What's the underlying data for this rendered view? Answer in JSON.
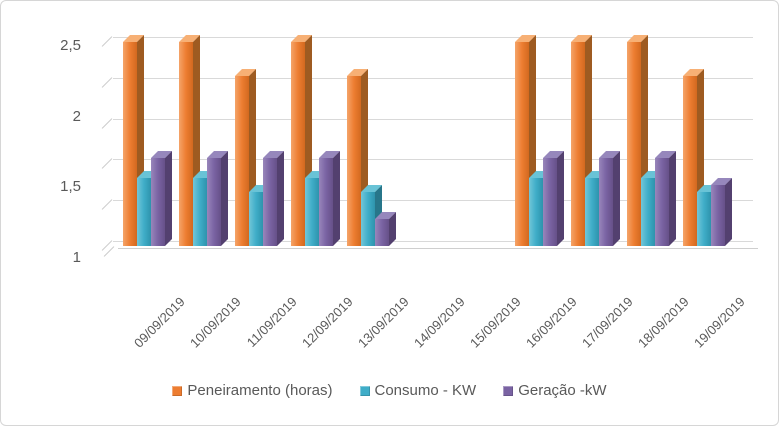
{
  "chart_data": {
    "type": "bar",
    "style": "3d-clustered-column",
    "title": "",
    "xlabel": "",
    "ylabel": "",
    "categories": [
      "09/09/2019",
      "10/09/2019",
      "11/09/2019",
      "12/09/2019",
      "13/09/2019",
      "14/09/2019",
      "15/09/2019",
      "16/09/2019",
      "17/09/2019",
      "18/09/2019",
      "19/09/2019"
    ],
    "series": [
      {
        "name": "Peneiramento (horas)",
        "values": [
          2.5,
          2.5,
          2.25,
          2.5,
          2.25,
          0,
          0,
          2.5,
          2.5,
          2.5,
          2.25
        ],
        "colors": {
          "main": "#ED7D31",
          "light": "#F5A469",
          "dark": "#D2691F",
          "topc": "#F7B075",
          "side": "#9E5B21"
        }
      },
      {
        "name": "Consumo - KW",
        "values": [
          1.5,
          1.5,
          1.4,
          1.5,
          1.4,
          0,
          0,
          1.5,
          1.5,
          1.5,
          1.4
        ],
        "colors": {
          "main": "#3FADC8",
          "light": "#72C6D8",
          "dark": "#2E93AC",
          "topc": "#69C3D6",
          "side": "#27768A"
        }
      },
      {
        "name": "Geração -kW",
        "values": [
          1.65,
          1.65,
          1.65,
          1.65,
          1.2,
          0,
          0,
          1.65,
          1.65,
          1.65,
          1.45
        ],
        "colors": {
          "main": "#7A63A3",
          "light": "#9886BB",
          "dark": "#665088",
          "topc": "#9687BC",
          "side": "#53406F"
        }
      }
    ],
    "ylim": [
      1,
      2.5
    ],
    "y_tick_labels": [
      "2,5",
      "2",
      "1,5",
      "1"
    ],
    "grid": true,
    "gridline_count": 6,
    "legend_position": "bottom",
    "axis_text_color": "#595959",
    "gridline_color": "#D9D9D9",
    "empty_categories": [
      "14/09/2019",
      "15/09/2019"
    ]
  }
}
